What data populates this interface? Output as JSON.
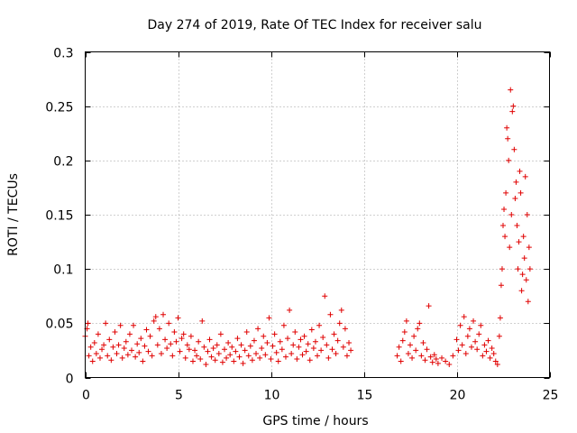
{
  "chart_data": {
    "type": "scatter",
    "title": "Day 274 of 2019, Rate Of TEC Index for receiver salu",
    "xlabel": "GPS time / hours",
    "ylabel": "ROTI / TECUs",
    "xlim": [
      0,
      25
    ],
    "ylim": [
      0,
      0.3
    ],
    "xticks": [
      0,
      5,
      10,
      15,
      20,
      25
    ],
    "xtick_labels": [
      "0",
      "5",
      "10",
      "15",
      "20",
      "25"
    ],
    "yticks": [
      0,
      0.05,
      0.1,
      0.15,
      0.2,
      0.25,
      0.3
    ],
    "ytick_labels": [
      "0",
      "0.05",
      "0.1",
      "0.15",
      "0.2",
      "0.25",
      "0.3"
    ],
    "grid": true,
    "marker": "plus",
    "color": "#e00000",
    "series": [
      {
        "name": "ROTI",
        "points": [
          [
            0.0,
            0.038
          ],
          [
            0.1,
            0.045
          ],
          [
            0.15,
            0.05
          ],
          [
            0.2,
            0.02
          ],
          [
            0.3,
            0.028
          ],
          [
            0.4,
            0.015
          ],
          [
            0.5,
            0.032
          ],
          [
            0.6,
            0.022
          ],
          [
            0.7,
            0.04
          ],
          [
            0.8,
            0.018
          ],
          [
            0.9,
            0.026
          ],
          [
            1.0,
            0.03
          ],
          [
            1.1,
            0.05
          ],
          [
            1.2,
            0.02
          ],
          [
            1.3,
            0.035
          ],
          [
            1.4,
            0.016
          ],
          [
            1.5,
            0.028
          ],
          [
            1.6,
            0.042
          ],
          [
            1.7,
            0.022
          ],
          [
            1.8,
            0.03
          ],
          [
            1.9,
            0.048
          ],
          [
            2.0,
            0.018
          ],
          [
            2.1,
            0.027
          ],
          [
            2.2,
            0.033
          ],
          [
            2.3,
            0.021
          ],
          [
            2.4,
            0.04
          ],
          [
            2.5,
            0.025
          ],
          [
            2.6,
            0.048
          ],
          [
            2.7,
            0.019
          ],
          [
            2.8,
            0.031
          ],
          [
            2.9,
            0.023
          ],
          [
            3.0,
            0.036
          ],
          [
            3.1,
            0.015
          ],
          [
            3.2,
            0.029
          ],
          [
            3.3,
            0.044
          ],
          [
            3.4,
            0.024
          ],
          [
            3.5,
            0.038
          ],
          [
            3.6,
            0.02
          ],
          [
            3.7,
            0.052
          ],
          [
            3.8,
            0.056
          ],
          [
            3.9,
            0.03
          ],
          [
            4.0,
            0.045
          ],
          [
            4.1,
            0.022
          ],
          [
            4.2,
            0.058
          ],
          [
            4.3,
            0.035
          ],
          [
            4.4,
            0.027
          ],
          [
            4.5,
            0.05
          ],
          [
            4.6,
            0.031
          ],
          [
            4.7,
            0.02
          ],
          [
            4.8,
            0.042
          ],
          [
            4.9,
            0.033
          ],
          [
            5.0,
            0.055
          ],
          [
            5.1,
            0.024
          ],
          [
            5.2,
            0.036
          ],
          [
            5.3,
            0.04
          ],
          [
            5.4,
            0.018
          ],
          [
            5.5,
            0.03
          ],
          [
            5.6,
            0.026
          ],
          [
            5.7,
            0.038
          ],
          [
            5.8,
            0.015
          ],
          [
            5.9,
            0.025
          ],
          [
            6.0,
            0.02
          ],
          [
            6.1,
            0.033
          ],
          [
            6.2,
            0.017
          ],
          [
            6.3,
            0.052
          ],
          [
            6.4,
            0.028
          ],
          [
            6.5,
            0.012
          ],
          [
            6.6,
            0.024
          ],
          [
            6.7,
            0.035
          ],
          [
            6.8,
            0.019
          ],
          [
            6.9,
            0.027
          ],
          [
            7.0,
            0.016
          ],
          [
            7.1,
            0.03
          ],
          [
            7.2,
            0.022
          ],
          [
            7.3,
            0.04
          ],
          [
            7.4,
            0.014
          ],
          [
            7.5,
            0.026
          ],
          [
            7.6,
            0.018
          ],
          [
            7.7,
            0.032
          ],
          [
            7.8,
            0.021
          ],
          [
            7.9,
            0.028
          ],
          [
            8.0,
            0.015
          ],
          [
            8.1,
            0.024
          ],
          [
            8.2,
            0.036
          ],
          [
            8.3,
            0.019
          ],
          [
            8.4,
            0.03
          ],
          [
            8.5,
            0.013
          ],
          [
            8.6,
            0.025
          ],
          [
            8.7,
            0.042
          ],
          [
            8.8,
            0.02
          ],
          [
            8.9,
            0.029
          ],
          [
            9.0,
            0.016
          ],
          [
            9.1,
            0.034
          ],
          [
            9.2,
            0.022
          ],
          [
            9.3,
            0.045
          ],
          [
            9.4,
            0.018
          ],
          [
            9.5,
            0.027
          ],
          [
            9.6,
            0.038
          ],
          [
            9.7,
            0.021
          ],
          [
            9.8,
            0.032
          ],
          [
            9.9,
            0.055
          ],
          [
            10.0,
            0.017
          ],
          [
            10.1,
            0.029
          ],
          [
            10.2,
            0.04
          ],
          [
            10.3,
            0.023
          ],
          [
            10.4,
            0.015
          ],
          [
            10.5,
            0.033
          ],
          [
            10.6,
            0.026
          ],
          [
            10.7,
            0.048
          ],
          [
            10.8,
            0.019
          ],
          [
            10.9,
            0.036
          ],
          [
            11.0,
            0.062
          ],
          [
            11.1,
            0.022
          ],
          [
            11.2,
            0.03
          ],
          [
            11.3,
            0.042
          ],
          [
            11.4,
            0.017
          ],
          [
            11.5,
            0.028
          ],
          [
            11.6,
            0.035
          ],
          [
            11.7,
            0.021
          ],
          [
            11.8,
            0.038
          ],
          [
            11.9,
            0.024
          ],
          [
            12.0,
            0.031
          ],
          [
            12.1,
            0.016
          ],
          [
            12.2,
            0.044
          ],
          [
            12.3,
            0.027
          ],
          [
            12.4,
            0.033
          ],
          [
            12.5,
            0.02
          ],
          [
            12.6,
            0.048
          ],
          [
            12.7,
            0.025
          ],
          [
            12.8,
            0.037
          ],
          [
            12.9,
            0.075
          ],
          [
            13.0,
            0.03
          ],
          [
            13.1,
            0.018
          ],
          [
            13.2,
            0.058
          ],
          [
            13.3,
            0.026
          ],
          [
            13.4,
            0.04
          ],
          [
            13.5,
            0.022
          ],
          [
            13.6,
            0.034
          ],
          [
            13.7,
            0.05
          ],
          [
            13.8,
            0.062
          ],
          [
            13.9,
            0.028
          ],
          [
            14.0,
            0.045
          ],
          [
            14.1,
            0.02
          ],
          [
            14.2,
            0.032
          ],
          [
            14.3,
            0.025
          ],
          [
            16.8,
            0.02
          ],
          [
            16.9,
            0.028
          ],
          [
            17.0,
            0.015
          ],
          [
            17.1,
            0.034
          ],
          [
            17.2,
            0.042
          ],
          [
            17.3,
            0.052
          ],
          [
            17.4,
            0.022
          ],
          [
            17.5,
            0.03
          ],
          [
            17.6,
            0.018
          ],
          [
            17.7,
            0.038
          ],
          [
            17.8,
            0.025
          ],
          [
            17.9,
            0.045
          ],
          [
            18.0,
            0.05
          ],
          [
            18.1,
            0.02
          ],
          [
            18.2,
            0.032
          ],
          [
            18.3,
            0.016
          ],
          [
            18.4,
            0.026
          ],
          [
            18.5,
            0.066
          ],
          [
            18.6,
            0.019
          ],
          [
            18.7,
            0.014
          ],
          [
            18.8,
            0.021
          ],
          [
            18.9,
            0.017
          ],
          [
            19.0,
            0.013
          ],
          [
            19.2,
            0.018
          ],
          [
            19.4,
            0.015
          ],
          [
            19.6,
            0.012
          ],
          [
            19.8,
            0.02
          ],
          [
            20.0,
            0.035
          ],
          [
            20.1,
            0.025
          ],
          [
            20.2,
            0.048
          ],
          [
            20.3,
            0.03
          ],
          [
            20.4,
            0.056
          ],
          [
            20.5,
            0.022
          ],
          [
            20.6,
            0.038
          ],
          [
            20.7,
            0.045
          ],
          [
            20.8,
            0.028
          ],
          [
            20.9,
            0.052
          ],
          [
            21.0,
            0.033
          ],
          [
            21.1,
            0.026
          ],
          [
            21.2,
            0.04
          ],
          [
            21.3,
            0.048
          ],
          [
            21.4,
            0.02
          ],
          [
            21.5,
            0.03
          ],
          [
            21.6,
            0.024
          ],
          [
            21.7,
            0.034
          ],
          [
            21.8,
            0.018
          ],
          [
            21.9,
            0.027
          ],
          [
            22.0,
            0.022
          ],
          [
            22.1,
            0.015
          ],
          [
            22.2,
            0.012
          ],
          [
            22.3,
            0.038
          ],
          [
            22.35,
            0.055
          ],
          [
            22.4,
            0.085
          ],
          [
            22.45,
            0.1
          ],
          [
            22.5,
            0.14
          ],
          [
            22.55,
            0.155
          ],
          [
            22.6,
            0.13
          ],
          [
            22.65,
            0.17
          ],
          [
            22.7,
            0.23
          ],
          [
            22.75,
            0.22
          ],
          [
            22.8,
            0.2
          ],
          [
            22.85,
            0.12
          ],
          [
            22.9,
            0.265
          ],
          [
            22.95,
            0.15
          ],
          [
            23.0,
            0.245
          ],
          [
            23.05,
            0.25
          ],
          [
            23.1,
            0.21
          ],
          [
            23.15,
            0.165
          ],
          [
            23.2,
            0.18
          ],
          [
            23.25,
            0.14
          ],
          [
            23.3,
            0.1
          ],
          [
            23.35,
            0.125
          ],
          [
            23.4,
            0.19
          ],
          [
            23.45,
            0.17
          ],
          [
            23.5,
            0.08
          ],
          [
            23.55,
            0.095
          ],
          [
            23.6,
            0.13
          ],
          [
            23.65,
            0.11
          ],
          [
            23.7,
            0.185
          ],
          [
            23.75,
            0.09
          ],
          [
            23.8,
            0.15
          ],
          [
            23.85,
            0.07
          ],
          [
            23.9,
            0.12
          ],
          [
            23.95,
            0.1
          ]
        ]
      }
    ]
  }
}
